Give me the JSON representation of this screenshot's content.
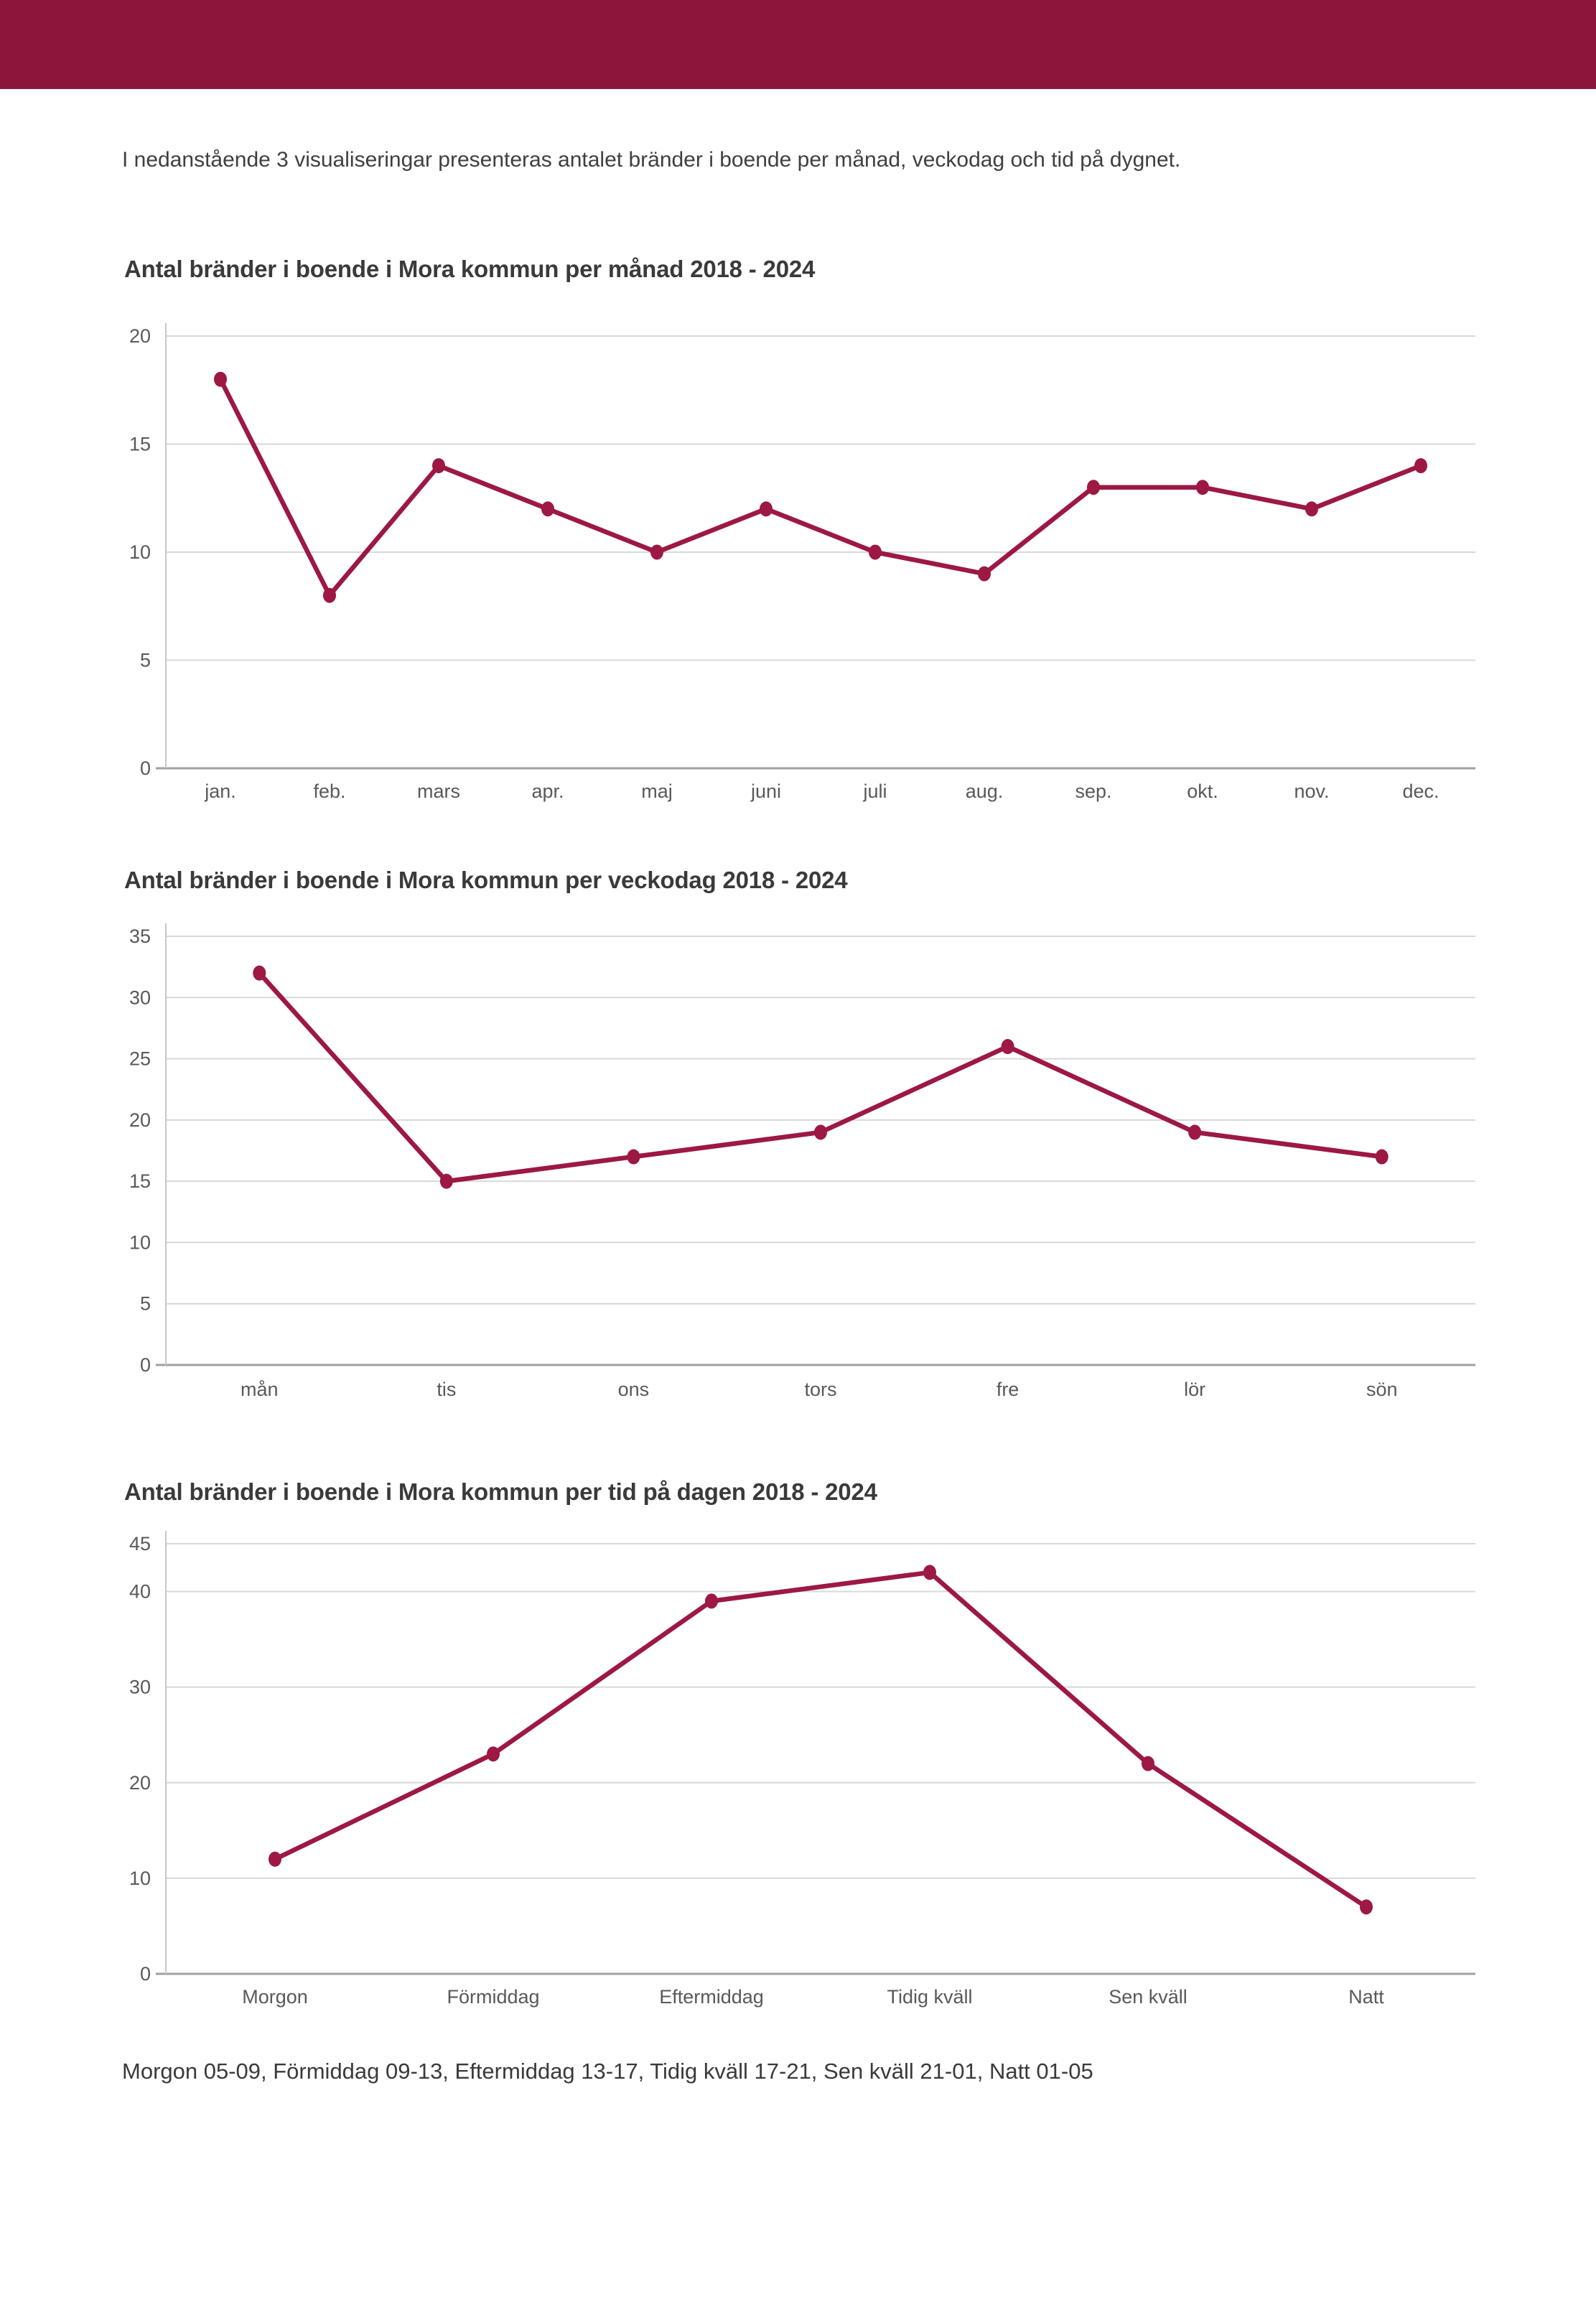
{
  "page": {
    "banner_color": "#8d153c",
    "intro_text": "I nedanstående 3 visualiseringar presenteras antalet bränder i boende per månad, veckodag och tid på dygnet.",
    "footer_text": "Morgon 05-09, Förmiddag 09-13, Eftermiddag 13-17, Tidig kväll 17-21, Sen kväll 21-01, Natt 01-05"
  },
  "chart_data": [
    {
      "type": "line",
      "title": "Antal bränder i boende i Mora kommun per månad 2018 - 2024",
      "categories": [
        "jan.",
        "feb.",
        "mars",
        "apr.",
        "maj",
        "juni",
        "juli",
        "aug.",
        "sep.",
        "okt.",
        "nov.",
        "dec."
      ],
      "values": [
        18,
        8,
        14,
        12,
        10,
        12,
        10,
        9,
        13,
        13,
        12,
        14
      ],
      "xlabel": "",
      "ylabel": "",
      "ylim": [
        0,
        20
      ],
      "yticks": [
        0,
        5,
        10,
        15,
        20
      ],
      "line_color": "#9d1843",
      "grid": "horizontal",
      "legend": "none"
    },
    {
      "type": "line",
      "title": "Antal bränder i boende i Mora kommun per veckodag 2018 - 2024",
      "categories": [
        "mån",
        "tis",
        "ons",
        "tors",
        "fre",
        "lör",
        "sön"
      ],
      "values": [
        32,
        15,
        17,
        19,
        26,
        19,
        17
      ],
      "xlabel": "",
      "ylabel": "",
      "ylim": [
        0,
        35
      ],
      "yticks": [
        0,
        5,
        10,
        15,
        20,
        25,
        30,
        35
      ],
      "line_color": "#9d1843",
      "grid": "horizontal",
      "legend": "none"
    },
    {
      "type": "line",
      "title": "Antal bränder i boende i Mora kommun per tid på dagen 2018 - 2024",
      "categories": [
        "Morgon",
        "Förmiddag",
        "Eftermiddag",
        "Tidig kväll",
        "Sen kväll",
        "Natt"
      ],
      "values": [
        12,
        23,
        39,
        42,
        22,
        7
      ],
      "xlabel": "",
      "ylabel": "",
      "ylim": [
        0,
        45
      ],
      "yticks": [
        0,
        10,
        20,
        30,
        40,
        45
      ],
      "line_color": "#9d1843",
      "grid": "horizontal",
      "legend": "none"
    }
  ]
}
